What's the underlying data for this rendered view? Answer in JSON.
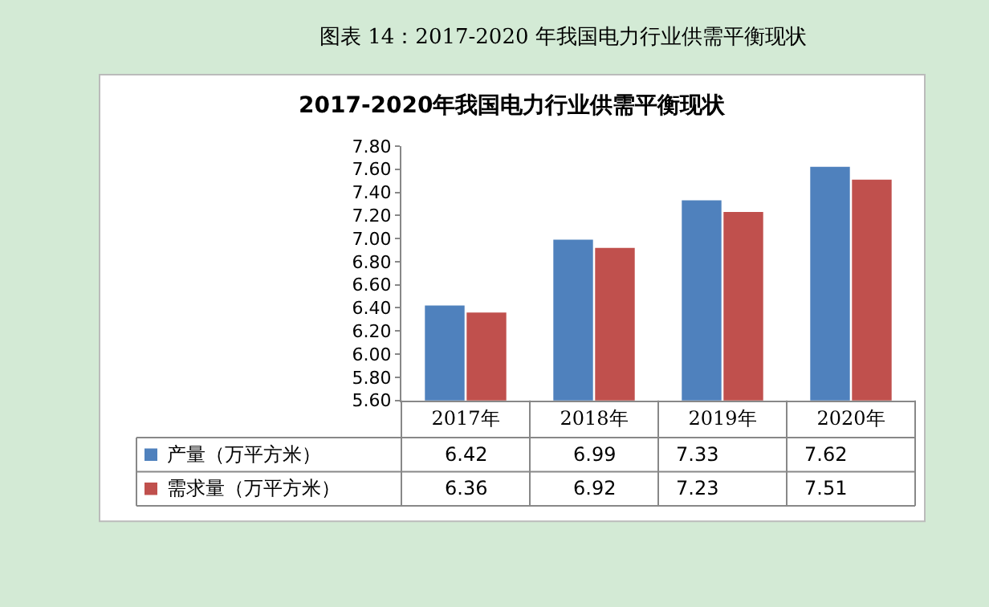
{
  "chart_data": {
    "type": "bar",
    "title": "图表 14：2017-2020 年我国电力行业供需平衡现状",
    "subtitle": "2017-2020年我国电力行业供需平衡现状",
    "categories": [
      "2017年",
      "2018年",
      "2019年",
      "2020年"
    ],
    "series": [
      {
        "name": "产量（万平方米）",
        "color": "#4f81bd",
        "values": [
          6.42,
          6.99,
          7.33,
          7.62
        ]
      },
      {
        "name": "需求量（万平方米）",
        "color": "#c0504d",
        "values": [
          6.36,
          6.92,
          7.23,
          7.51
        ]
      }
    ],
    "ylim": [
      5.6,
      7.8
    ],
    "yticks": [
      {
        "value": 5.6,
        "label": "5.60"
      },
      {
        "value": 5.8,
        "label": "5.80"
      },
      {
        "value": 6.0,
        "label": "6.00"
      },
      {
        "value": 6.2,
        "label": "6.20"
      },
      {
        "value": 6.4,
        "label": "6.40"
      },
      {
        "value": 6.6,
        "label": "6.60"
      },
      {
        "value": 6.8,
        "label": "6.80"
      },
      {
        "value": 7.0,
        "label": "7.00"
      },
      {
        "value": 7.2,
        "label": "7.20"
      },
      {
        "value": 7.4,
        "label": "7.40"
      },
      {
        "value": 7.6,
        "label": "7.60"
      },
      {
        "value": 7.8,
        "label": "7.80"
      }
    ],
    "grid": false,
    "legend": "bottom",
    "data_labels": true
  }
}
